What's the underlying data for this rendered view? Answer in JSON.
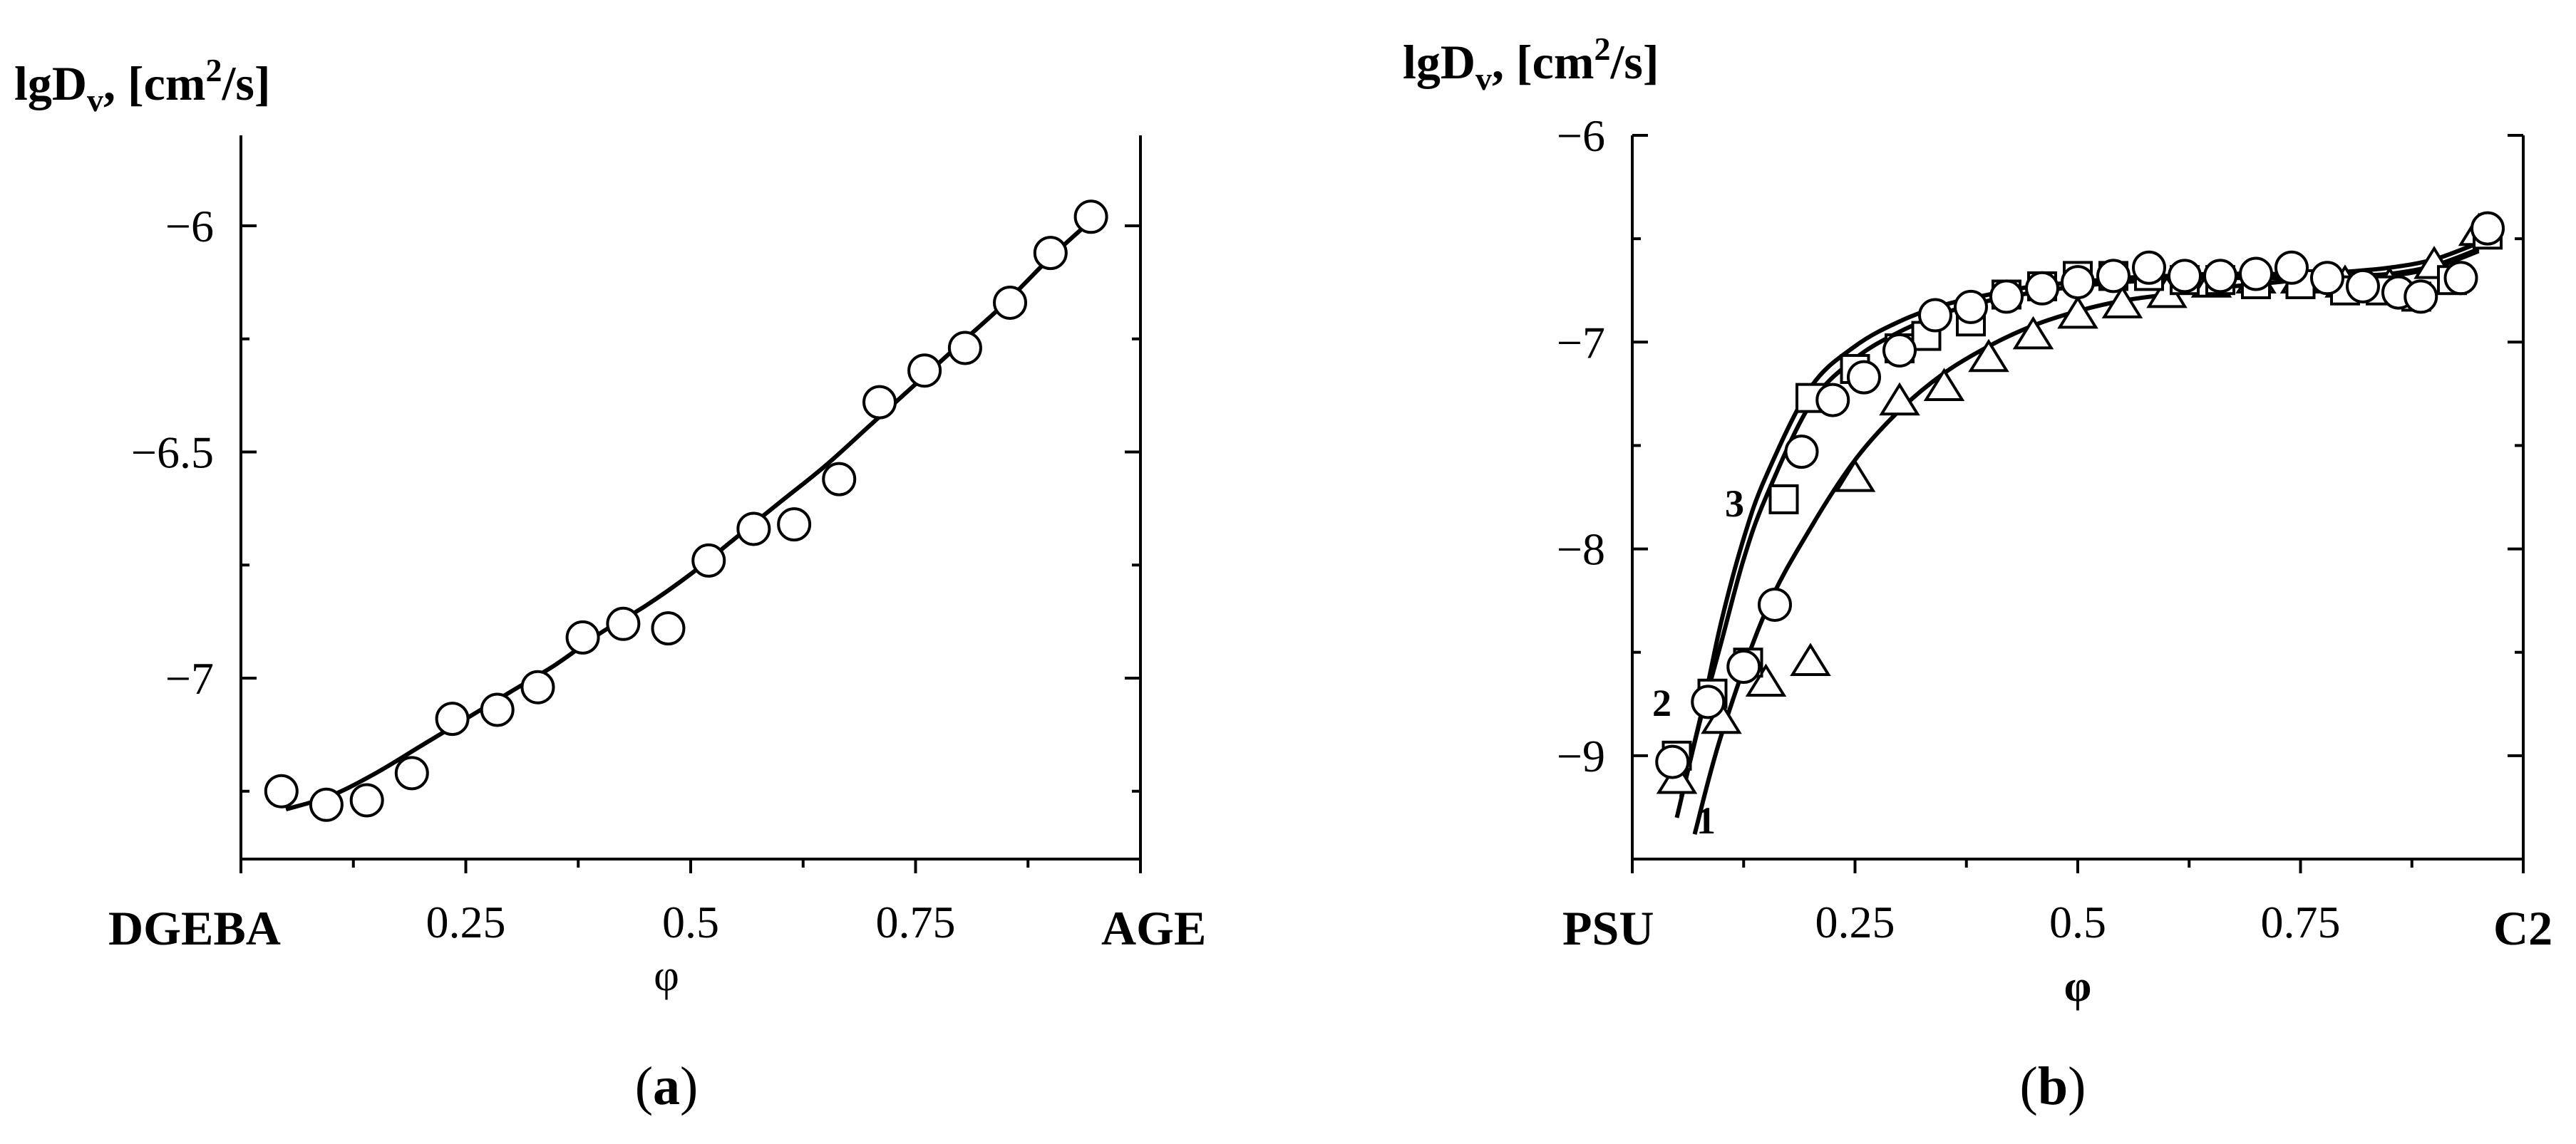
{
  "chart_data": [
    {
      "id": "a",
      "type": "scatter",
      "panel_label": "(a)",
      "panel_label_parts": {
        "open": "(",
        "letter": "a",
        "close": ")"
      },
      "ylabel": "lgD_v, [cm^2/s]",
      "ylabel_parts": {
        "base": "lgD",
        "sub": "v",
        "mid": ", [cm",
        "sup": "2",
        "end": "/s]"
      },
      "xlabel": "φ",
      "x_start_label": "DGEBA",
      "x_end_label": "AGE",
      "xlim": [
        0,
        1
      ],
      "ylim": [
        -7.4,
        -5.8
      ],
      "xticks": [
        0.25,
        0.5,
        0.75
      ],
      "xtick_labels": [
        "0.25",
        "0.5",
        "0.75"
      ],
      "yticks": [
        -6,
        -6.5,
        -7
      ],
      "ytick_labels": [
        "−6",
        "−6.5",
        "−7"
      ],
      "series": [
        {
          "name": "data",
          "marker": "circle",
          "x": [
            0.045,
            0.095,
            0.14,
            0.19,
            0.235,
            0.285,
            0.33,
            0.38,
            0.425,
            0.475,
            0.52,
            0.57,
            0.615,
            0.665,
            0.71,
            0.76,
            0.805,
            0.855,
            0.9,
            0.945
          ],
          "y": [
            -7.25,
            -7.28,
            -7.27,
            -7.21,
            -7.09,
            -7.07,
            -7.02,
            -6.91,
            -6.88,
            -6.89,
            -6.74,
            -6.67,
            -6.66,
            -6.56,
            -6.39,
            -6.32,
            -6.27,
            -6.17,
            -6.06,
            -5.98
          ]
        }
      ],
      "fit_curve": {
        "x": [
          0.05,
          0.1,
          0.15,
          0.2,
          0.25,
          0.3,
          0.35,
          0.4,
          0.45,
          0.5,
          0.55,
          0.6,
          0.65,
          0.7,
          0.75,
          0.8,
          0.85,
          0.9,
          0.95
        ],
        "y": [
          -7.29,
          -7.26,
          -7.21,
          -7.15,
          -7.09,
          -7.03,
          -6.97,
          -6.9,
          -6.84,
          -6.77,
          -6.69,
          -6.61,
          -6.53,
          -6.44,
          -6.35,
          -6.26,
          -6.17,
          -6.07,
          -5.98
        ]
      }
    },
    {
      "id": "b",
      "type": "scatter",
      "panel_label": "(b)",
      "panel_label_parts": {
        "open": "(",
        "letter": "b",
        "close": ")"
      },
      "ylabel": "lgD_v, [cm^2/s]",
      "ylabel_parts": {
        "base": "lgD",
        "sub": "v",
        "mid": ", [cm",
        "sup": "2",
        "end": "/s]"
      },
      "xlabel": "φ",
      "x_start_label": "PSU",
      "x_end_label": "C2",
      "xlim": [
        0,
        1
      ],
      "ylim": [
        -9.5,
        -6
      ],
      "xticks": [
        0.25,
        0.5,
        0.75
      ],
      "xtick_labels": [
        "0.25",
        "0.5",
        "0.75"
      ],
      "yticks": [
        -6,
        -7,
        -8,
        -9
      ],
      "ytick_labels": [
        "−6",
        "−7",
        "−8",
        "−9"
      ],
      "curve_labels": [
        "1",
        "2",
        "3"
      ],
      "series": [
        {
          "name": "1",
          "marker": "triangle",
          "x": [
            0.05,
            0.1,
            0.15,
            0.2,
            0.25,
            0.3,
            0.35,
            0.4,
            0.45,
            0.5,
            0.55,
            0.6,
            0.65,
            0.7,
            0.75,
            0.8,
            0.85,
            0.9,
            0.95
          ],
          "y": [
            -9.12,
            -8.83,
            -8.65,
            -8.55,
            -7.66,
            -7.29,
            -7.22,
            -7.08,
            -6.97,
            -6.87,
            -6.82,
            -6.77,
            -6.72,
            -6.7,
            -6.7,
            -6.72,
            -6.73,
            -6.63,
            -6.47
          ]
        },
        {
          "name": "3",
          "marker": "square",
          "x": [
            0.05,
            0.09,
            0.13,
            0.17,
            0.2,
            0.25,
            0.3,
            0.33,
            0.38,
            0.42,
            0.46,
            0.5,
            0.54,
            0.58,
            0.62,
            0.66,
            0.7,
            0.75,
            0.8,
            0.84,
            0.88,
            0.92,
            0.96
          ],
          "y": [
            -9,
            -8.7,
            -8.55,
            -7.76,
            -7.27,
            -7.13,
            -7.03,
            -6.97,
            -6.9,
            -6.77,
            -6.73,
            -6.68,
            -6.68,
            -6.68,
            -6.7,
            -6.7,
            -6.72,
            -6.72,
            -6.75,
            -6.75,
            -6.78,
            -6.7,
            -6.48
          ]
        },
        {
          "name": "2",
          "marker": "circle",
          "x": [
            0.045,
            0.085,
            0.125,
            0.16,
            0.19,
            0.225,
            0.26,
            0.3,
            0.34,
            0.38,
            0.42,
            0.46,
            0.5,
            0.54,
            0.58,
            0.62,
            0.66,
            0.7,
            0.74,
            0.78,
            0.82,
            0.86,
            0.885,
            0.93,
            0.96
          ],
          "y": [
            -9.03,
            -8.74,
            -8.57,
            -8.27,
            -7.53,
            -7.28,
            -7.17,
            -7.04,
            -6.87,
            -6.83,
            -6.78,
            -6.74,
            -6.71,
            -6.68,
            -6.64,
            -6.68,
            -6.68,
            -6.67,
            -6.64,
            -6.69,
            -6.73,
            -6.76,
            -6.78,
            -6.69,
            -6.45
          ]
        }
      ],
      "fit_curves": [
        {
          "name": "1",
          "x": [
            0.07,
            0.1,
            0.15,
            0.2,
            0.25,
            0.3,
            0.35,
            0.4,
            0.45,
            0.5,
            0.55,
            0.6,
            0.65,
            0.7,
            0.75,
            0.8,
            0.85,
            0.9,
            0.95
          ],
          "y": [
            -9.38,
            -8.9,
            -8.3,
            -7.9,
            -7.57,
            -7.33,
            -7.15,
            -7.02,
            -6.92,
            -6.85,
            -6.8,
            -6.77,
            -6.74,
            -6.72,
            -6.7,
            -6.69,
            -6.68,
            -6.64,
            -6.56
          ]
        },
        {
          "name": "2",
          "x": [
            0.05,
            0.075,
            0.1,
            0.125,
            0.15,
            0.2,
            0.25,
            0.3,
            0.35,
            0.4,
            0.45,
            0.5,
            0.55,
            0.6,
            0.65,
            0.7,
            0.75,
            0.8,
            0.85,
            0.9,
            0.95
          ],
          "y": [
            -9.3,
            -8.85,
            -8.45,
            -8.05,
            -7.75,
            -7.3,
            -7.08,
            -6.95,
            -6.86,
            -6.8,
            -6.76,
            -6.73,
            -6.71,
            -6.7,
            -6.69,
            -6.69,
            -6.69,
            -6.68,
            -6.67,
            -6.63,
            -6.55
          ]
        },
        {
          "name": "3",
          "x": [
            0.055,
            0.08,
            0.1,
            0.125,
            0.15,
            0.2,
            0.25,
            0.3,
            0.35,
            0.4,
            0.45,
            0.5,
            0.55,
            0.6,
            0.65,
            0.7,
            0.75,
            0.8,
            0.85,
            0.9,
            0.95
          ],
          "y": [
            -9.2,
            -8.75,
            -8.35,
            -7.95,
            -7.65,
            -7.22,
            -7.02,
            -6.9,
            -6.82,
            -6.77,
            -6.73,
            -6.71,
            -6.69,
            -6.68,
            -6.67,
            -6.67,
            -6.67,
            -6.66,
            -6.64,
            -6.6,
            -6.52
          ]
        }
      ]
    }
  ]
}
